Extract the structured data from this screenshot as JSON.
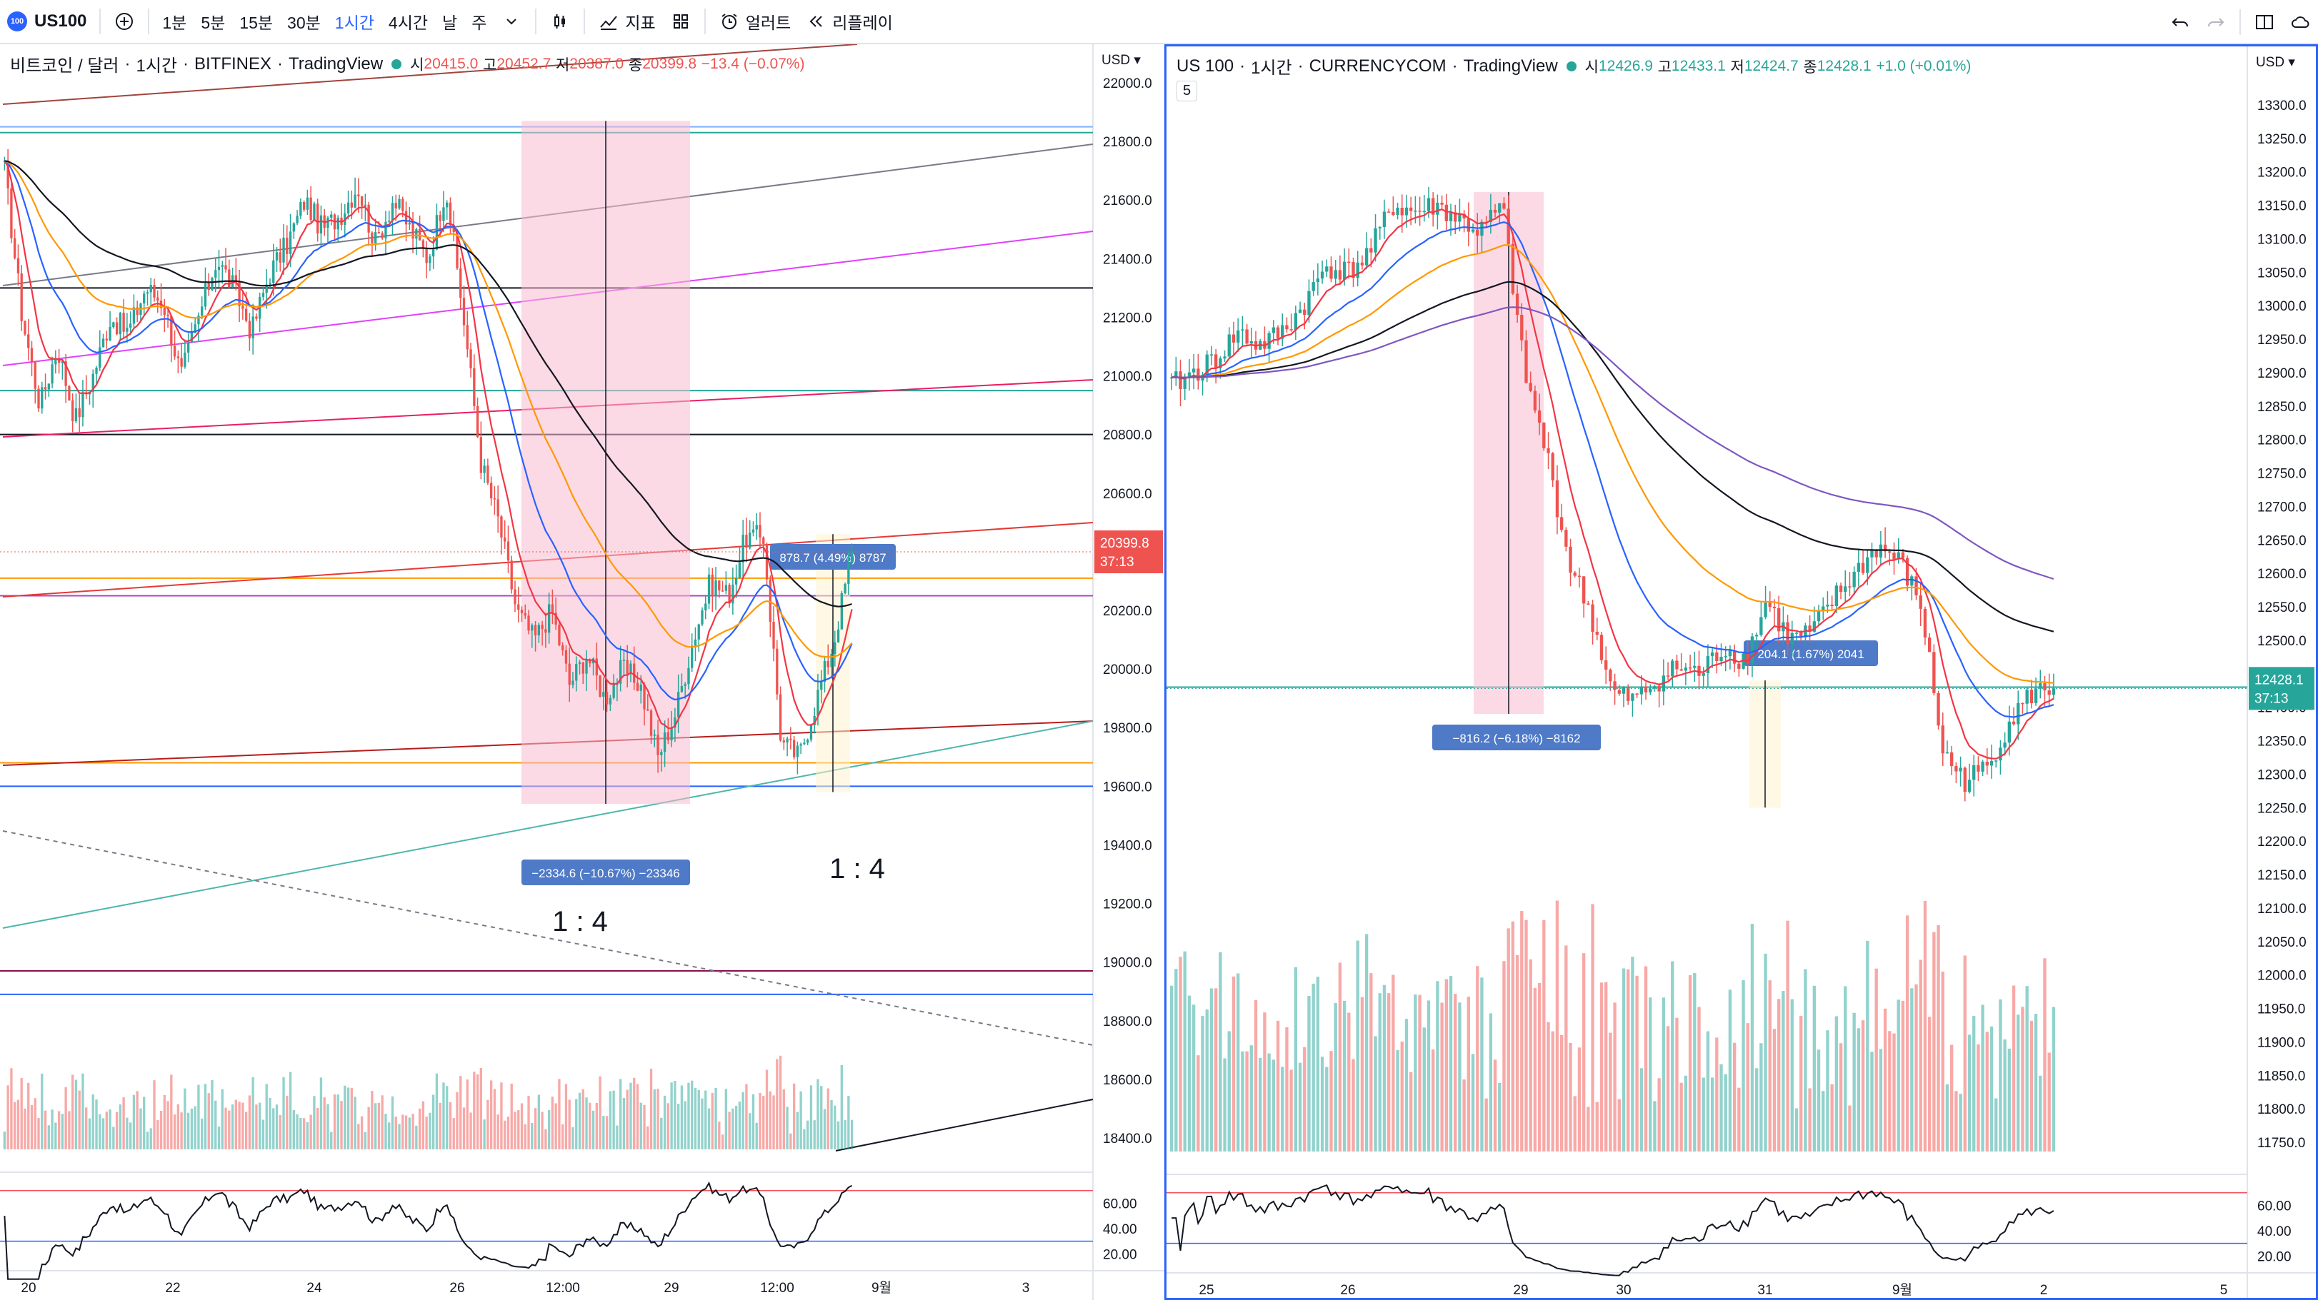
{
  "toolbar": {
    "symbol": "US100",
    "badge": "100",
    "intervals": [
      "1분",
      "5분",
      "15분",
      "30분",
      "1시간",
      "4시간",
      "날",
      "주"
    ],
    "active_interval": "1시간",
    "indicators_label": "지표",
    "alert_label": "얼러트",
    "replay_label": "리플레이"
  },
  "left": {
    "legend": {
      "title": "비트코인 / 달러",
      "interval": "1시간",
      "exchange": "BITFINEX",
      "brand": "TradingView",
      "open_label": "시",
      "open": "20415.0",
      "high_label": "고",
      "high": "20452.7",
      "low_label": "저",
      "low": "20387.0",
      "close_label": "종",
      "close": "20399.8",
      "change": "−13.4 (−0.07%)"
    },
    "currency": "USD",
    "last_price": "20399.8",
    "last_countdown": "37:13",
    "box_up_label": "878.7 (4.49%) 8787",
    "box_down_label": "−2334.6 (−10.67%) −23346",
    "ratio_a": "1 : 4",
    "ratio_b": "1 : 4",
    "rsi_ticks": [
      "60.00",
      "40.00",
      "20.00"
    ]
  },
  "right": {
    "legend": {
      "title": "US 100",
      "interval": "1시간",
      "exchange": "CURRENCYCOM",
      "brand": "TradingView",
      "open_label": "시",
      "open": "12426.9",
      "high_label": "고",
      "high": "12433.1",
      "low_label": "저",
      "low": "12424.7",
      "close_label": "종",
      "close": "12428.1",
      "change": "+1.0 (+0.01%)"
    },
    "sub_legend": "5",
    "currency": "USD",
    "last_price": "12428.1",
    "last_countdown": "37:13",
    "box_up_label": "204.1 (1.67%) 2041",
    "box_down_label": "−816.2 (−6.18%) −8162",
    "rsi_ticks": [
      "60.00",
      "40.00",
      "20.00"
    ]
  },
  "chart_data": [
    {
      "type": "candlestick",
      "title": "비트코인 / 달러 · 1시간 · BITFINEX",
      "currency": "USD",
      "y_ticks": [
        "22000.0",
        "21800.0",
        "21600.0",
        "21400.0",
        "21200.0",
        "21000.0",
        "20800.0",
        "20600.0",
        "20400.0",
        "20200.0",
        "20000.0",
        "19800.0",
        "19600.0",
        "19400.0",
        "19200.0",
        "19000.0",
        "18800.0",
        "18600.0",
        "18400.0"
      ],
      "x_ticks": [
        "20",
        "22",
        "24",
        "26",
        "12:00",
        "29",
        "12:00",
        "9월",
        "3"
      ],
      "ylim": [
        18400,
        22000
      ],
      "close_path": [
        21700,
        21200,
        20900,
        21100,
        20850,
        21000,
        21200,
        21150,
        21300,
        21250,
        21000,
        21200,
        21400,
        21300,
        21150,
        21350,
        21450,
        21600,
        21500,
        21550,
        21650,
        21450,
        21600,
        21500,
        21400,
        21650,
        21200,
        20700,
        20500,
        20200,
        20100,
        20200,
        19950,
        20050,
        19900,
        20000,
        19950,
        19700,
        19850,
        20100,
        20300,
        20250,
        20450,
        20450,
        19750,
        19700,
        19900,
        20100,
        20400
      ],
      "last": 20399.8,
      "measure_up": {
        "value": 878.7,
        "pct": 4.49,
        "ticks": 8787
      },
      "measure_down": {
        "value": -2334.6,
        "pct": -10.67,
        "ticks": -23346
      },
      "rsi_levels": [
        60,
        40,
        20
      ]
    },
    {
      "type": "candlestick",
      "title": "US 100 · 1시간 · CURRENCYCOM",
      "currency": "USD",
      "y_ticks": [
        "13300.0",
        "13250.0",
        "13200.0",
        "13150.0",
        "13100.0",
        "13050.0",
        "13000.0",
        "12950.0",
        "12900.0",
        "12850.0",
        "12800.0",
        "12750.0",
        "12700.0",
        "12650.0",
        "12600.0",
        "12550.0",
        "12500.0",
        "12450.0",
        "12400.0",
        "12350.0",
        "12300.0",
        "12250.0",
        "12200.0",
        "12150.0",
        "12100.0",
        "12050.0",
        "12000.0",
        "11950.0",
        "11900.0",
        "11850.0",
        "11800.0",
        "11750.0"
      ],
      "x_ticks": [
        "25",
        "26",
        "29",
        "30",
        "31",
        "9월",
        "2",
        "5"
      ],
      "ylim": [
        11750,
        13300
      ],
      "close_path": [
        12880,
        12900,
        12920,
        12960,
        12940,
        12960,
        13000,
        13060,
        13050,
        13080,
        13150,
        13140,
        13150,
        13130,
        13110,
        13150,
        12900,
        12780,
        12620,
        12540,
        12420,
        12410,
        12440,
        12460,
        12450,
        12490,
        12470,
        12560,
        12500,
        12510,
        12560,
        12600,
        12640,
        12620,
        12550,
        12330,
        12290,
        12310,
        12380,
        12420,
        12430
      ],
      "last": 12428.1,
      "measure_up": {
        "value": 204.1,
        "pct": 1.67,
        "ticks": 2041
      },
      "measure_down": {
        "value": -816.2,
        "pct": -6.18,
        "ticks": -8162
      },
      "rsi_levels": [
        60,
        40,
        20
      ]
    }
  ]
}
